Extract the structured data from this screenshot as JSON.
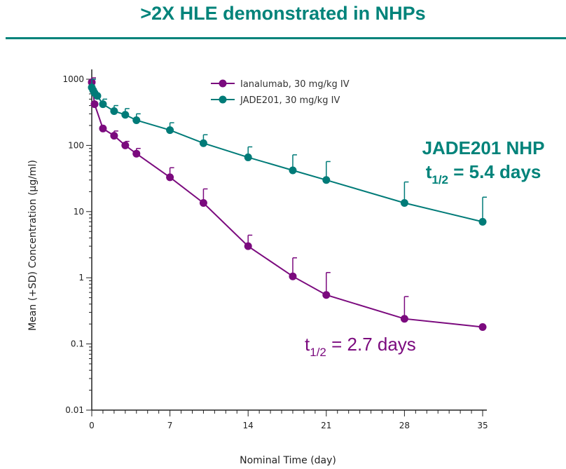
{
  "slide": {
    "title": ">2X HLE demonstrated in NHPs"
  },
  "colors": {
    "brand": "#00837a",
    "ianalumab": "#7b0a7e",
    "jade201": "#007b78"
  },
  "chart_data": {
    "type": "line",
    "title": "",
    "xlabel": "Nominal Time (day)",
    "ylabel": "Mean (+SD) Concentration (µg/ml)",
    "x_ticks": [
      0,
      7,
      14,
      21,
      28,
      35
    ],
    "y_ticks": [
      0.01,
      0.1,
      1,
      10,
      100,
      1000
    ],
    "y_tick_labels": [
      "0.01",
      "0.1",
      "1",
      "10",
      "100",
      "1000"
    ],
    "xlim": [
      0,
      35
    ],
    "ylim": [
      0.01,
      1000
    ],
    "y_scale": "log",
    "grid": false,
    "legend_position": "top",
    "series": [
      {
        "name": "Ianalumab, 30 mg/kg IV",
        "color": "#7b0a7e",
        "x": [
          0,
          0.25,
          1,
          2,
          3,
          4,
          7,
          10,
          14,
          18,
          21,
          28,
          35
        ],
        "y": [
          900,
          420,
          180,
          140,
          100,
          75,
          33,
          13.5,
          3.0,
          1.05,
          0.55,
          0.24,
          0.18
        ],
        "sd_upper": [
          1050,
          null,
          null,
          165,
          115,
          90,
          46,
          22,
          4.4,
          2.0,
          1.2,
          0.52,
          null
        ]
      },
      {
        "name": "JADE201, 30 mg/kg IV",
        "color": "#007b78",
        "x": [
          0,
          0.125,
          0.25,
          0.5,
          1,
          2,
          3,
          4,
          7,
          10,
          14,
          18,
          21,
          28,
          35
        ],
        "y": [
          750,
          680,
          620,
          560,
          420,
          330,
          290,
          240,
          170,
          108,
          66,
          42,
          30,
          13.5,
          7
        ],
        "sd_upper": [
          1000,
          null,
          null,
          null,
          500,
          400,
          360,
          300,
          220,
          145,
          95,
          72,
          57,
          28,
          16.5
        ]
      }
    ],
    "annotations": [
      {
        "series": "JADE201, 30 mg/kg IV",
        "line1": "JADE201 NHP",
        "prefix": "t",
        "subscript": "1/2",
        "suffix": " = 5.4 days"
      },
      {
        "series": "Ianalumab, 30 mg/kg IV",
        "prefix": "t",
        "subscript": "1/2",
        "suffix": " = 2.7 days"
      }
    ]
  }
}
